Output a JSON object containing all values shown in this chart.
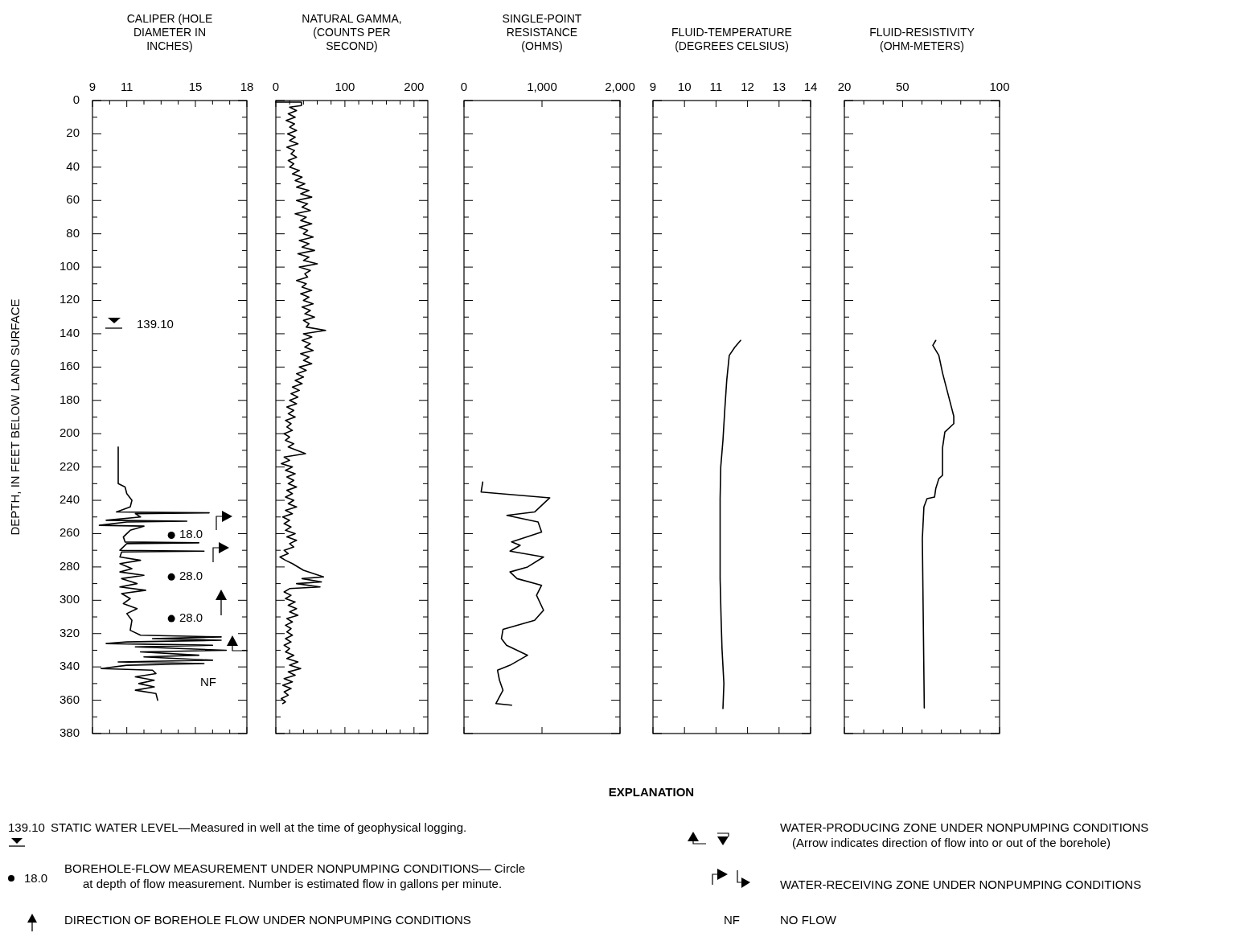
{
  "chart_data": [
    {
      "type": "line",
      "title": "CALIPER (HOLE DIAMETER IN INCHES)",
      "ylabel": "DEPTH, IN FEET BELOW LAND SURFACE",
      "xlim": [
        9,
        18
      ],
      "xticks": [
        9,
        {
          "value": 10,
          "label": null
        },
        11,
        {
          "value": 12,
          "label": null
        },
        {
          "value": 13,
          "label": null
        },
        {
          "value": 14,
          "label": null
        },
        15,
        {
          "value": 16,
          "label": null
        },
        {
          "value": 17,
          "label": null
        },
        18
      ],
      "ylim": [
        380,
        0
      ],
      "yticks": [
        0,
        {
          "value": 10,
          "label": null
        },
        20,
        {
          "value": 30,
          "label": null
        },
        40,
        {
          "value": 50,
          "label": null
        },
        60,
        {
          "value": 70,
          "label": null
        },
        80,
        {
          "value": 90,
          "label": null
        },
        100,
        {
          "value": 110,
          "label": null
        },
        120,
        {
          "value": 130,
          "label": null
        },
        140,
        {
          "value": 150,
          "label": null
        },
        160,
        {
          "value": 170,
          "label": null
        },
        180,
        {
          "value": 190,
          "label": null
        },
        200,
        {
          "value": 210,
          "label": null
        },
        220,
        {
          "value": 230,
          "label": null
        },
        240,
        {
          "value": 250,
          "label": null
        },
        260,
        {
          "value": 270,
          "label": null
        },
        280,
        {
          "value": 290,
          "label": null
        },
        300,
        {
          "value": 310,
          "label": null
        },
        320,
        {
          "value": 330,
          "label": null
        },
        340,
        {
          "value": 350,
          "label": null
        },
        360,
        {
          "value": 370,
          "label": null
        },
        380
      ],
      "series": [
        {
          "color": "#000000",
          "x": [
            10.5,
            10.5,
            10.5,
            10.9,
            11.0,
            11.3,
            11.2,
            10.4,
            15.8,
            11.5,
            11.8,
            9.8,
            14.5,
            11.0,
            9.4,
            12.0,
            11.2,
            10.8,
            10.9,
            15.2,
            11.0,
            10.6,
            15.5,
            10.7,
            10.6,
            11.8,
            10.6,
            11.3,
            10.6,
            12.0,
            10.7,
            11.6,
            10.6,
            12.1,
            10.7,
            11.2,
            10.8,
            11.6,
            11.0,
            11.3,
            11.2,
            11.8,
            16.5,
            12.5,
            16.5,
            11.0,
            9.8,
            16.0,
            11.5,
            16.8,
            11.8,
            15.2,
            12.0,
            16.0,
            10.5,
            15.5,
            11.0,
            9.5,
            12.5,
            12.7,
            11.5,
            12.6,
            11.7,
            12.6,
            11.5,
            12.7,
            12.8
          ],
          "values": [
            208,
            220,
            230,
            232,
            236,
            240,
            244,
            247,
            247.5,
            248,
            250,
            252,
            252.5,
            253,
            255,
            255.5,
            258,
            262,
            265,
            265.5,
            266,
            270,
            270.5,
            271,
            274,
            276,
            278,
            281,
            283,
            285,
            287,
            290,
            292,
            294,
            296,
            299,
            302,
            305,
            308,
            312,
            318,
            321,
            322,
            323,
            324,
            325,
            326,
            327,
            328,
            330,
            331,
            333,
            334,
            336,
            337,
            338,
            339,
            341,
            342,
            344,
            346,
            348,
            350,
            352,
            354,
            356,
            360
          ]
        },
        {
          "type": "scatter",
          "marker": "circle",
          "color": "#000000",
          "x": [
            13.6,
            13.6,
            13.6
          ],
          "values": [
            261,
            286,
            311
          ]
        }
      ],
      "annotations": [
        "139.10",
        "NF",
        "18.0",
        "28.0",
        "28.0"
      ]
    },
    {
      "type": "line",
      "title": "NATURAL GAMMA, (COUNTS PER SECOND)",
      "tick_labels": "x",
      "xlim": [
        0,
        220
      ],
      "xticks": [
        0,
        {
          "value": 20,
          "label": null
        },
        {
          "value": 40,
          "label": null
        },
        {
          "value": 60,
          "label": null
        },
        {
          "value": 80,
          "label": null
        },
        100,
        {
          "value": 120,
          "label": null
        },
        {
          "value": 140,
          "label": null
        },
        {
          "value": 160,
          "label": null
        },
        {
          "value": 180,
          "label": null
        },
        200
      ],
      "ylim": [
        380,
        0
      ],
      "yticks": [
        0,
        {
          "value": 10,
          "label": null
        },
        20,
        {
          "value": 30,
          "label": null
        },
        40,
        {
          "value": 50,
          "label": null
        },
        60,
        {
          "value": 70,
          "label": null
        },
        80,
        {
          "value": 90,
          "label": null
        },
        100,
        {
          "value": 110,
          "label": null
        },
        120,
        {
          "value": 130,
          "label": null
        },
        140,
        {
          "value": 150,
          "label": null
        },
        160,
        {
          "value": 170,
          "label": null
        },
        180,
        {
          "value": 190,
          "label": null
        },
        200,
        {
          "value": 210,
          "label": null
        },
        220,
        {
          "value": 230,
          "label": null
        },
        240,
        {
          "value": 250,
          "label": null
        },
        260,
        {
          "value": 270,
          "label": null
        },
        280,
        {
          "value": 290,
          "label": null
        },
        300,
        {
          "value": 310,
          "label": null
        },
        320,
        {
          "value": 330,
          "label": null
        },
        340,
        {
          "value": 350,
          "label": null
        },
        360,
        {
          "value": 370,
          "label": null
        },
        380
      ],
      "series": [
        {
          "color": "#000000",
          "x": [
            0,
            37,
            37,
            20,
            30,
            18,
            28,
            15,
            27,
            20,
            30,
            17,
            28,
            20,
            32,
            16,
            27,
            22,
            30,
            18,
            26,
            20,
            34,
            24,
            38,
            28,
            42,
            30,
            48,
            36,
            52,
            30,
            46,
            38,
            50,
            28,
            44,
            36,
            52,
            34,
            46,
            40,
            54,
            34,
            48,
            38,
            56,
            32,
            48,
            40,
            60,
            34,
            50,
            42,
            46,
            30,
            44,
            38,
            52,
            36,
            48,
            40,
            54,
            38,
            50,
            42,
            56,
            40,
            48,
            44,
            72,
            40,
            52,
            38,
            50,
            42,
            54,
            36,
            48,
            40,
            52,
            34,
            44,
            30,
            40,
            28,
            38,
            24,
            34,
            22,
            32,
            20,
            30,
            16,
            26,
            18,
            28,
            14,
            22,
            16,
            24,
            12,
            20,
            14,
            26,
            18,
            43,
            12,
            20,
            8,
            24,
            14,
            28,
            16,
            26,
            18,
            30,
            16,
            24,
            14,
            26,
            18,
            30,
            14,
            24,
            10,
            20,
            12,
            22,
            14,
            28,
            16,
            30,
            20,
            26,
            12,
            18,
            6,
            14,
            24,
            40,
            69,
            38,
            66,
            30,
            64,
            20,
            12,
            22,
            14,
            28,
            18,
            30,
            20,
            32,
            16,
            24,
            14,
            22,
            16,
            24,
            14,
            22,
            12,
            20,
            14,
            26,
            16,
            32,
            20,
            36,
            18,
            28,
            12,
            24,
            10,
            22,
            12,
            18,
            8,
            14,
            10
          ],
          "values": [
            1,
            1,
            3,
            4,
            6,
            8,
            10,
            12,
            14,
            16,
            18,
            20,
            22,
            24,
            26,
            28,
            30,
            32,
            34,
            36,
            38,
            40,
            42,
            44,
            46,
            48,
            50,
            52,
            54,
            56,
            58,
            60,
            62,
            64,
            66,
            68,
            70,
            72,
            74,
            76,
            78,
            80,
            82,
            84,
            86,
            88,
            90,
            92,
            94,
            96,
            98,
            100,
            102,
            104,
            106,
            108,
            110,
            112,
            114,
            116,
            118,
            120,
            122,
            124,
            126,
            128,
            130,
            132,
            134,
            136,
            138,
            140,
            142,
            144,
            146,
            148,
            150,
            152,
            154,
            156,
            158,
            160,
            162,
            164,
            166,
            168,
            170,
            172,
            174,
            176,
            178,
            180,
            182,
            184,
            186,
            188,
            190,
            192,
            194,
            196,
            198,
            200,
            202,
            204,
            206,
            208,
            212,
            214,
            216,
            218,
            220,
            222,
            224,
            226,
            228,
            230,
            232,
            234,
            236,
            238,
            240,
            242,
            244,
            246,
            248,
            250,
            252,
            254,
            256,
            258,
            260,
            262,
            264,
            266,
            268,
            270,
            272,
            274,
            276,
            278,
            282,
            286,
            287,
            289,
            290,
            292,
            293,
            295,
            297,
            299,
            301,
            303,
            305,
            307,
            309,
            311,
            313,
            315,
            317,
            319,
            321,
            323,
            325,
            327,
            329,
            331,
            333,
            335,
            337,
            339,
            341,
            343,
            345,
            347,
            349,
            351,
            353,
            355,
            357,
            359,
            361,
            362
          ]
        }
      ]
    },
    {
      "type": "line",
      "title": "SINGLE-POINT RESISTANCE (OHMS)",
      "tick_labels": "x",
      "xlim": [
        0,
        2000
      ],
      "xticks": [
        0,
        {
          "value": 1000,
          "label": "1,000"
        },
        {
          "value": 2000,
          "label": "2,000"
        }
      ],
      "ylim": [
        380,
        0
      ],
      "yticks": [
        0,
        {
          "value": 10,
          "label": null
        },
        20,
        {
          "value": 30,
          "label": null
        },
        40,
        {
          "value": 50,
          "label": null
        },
        60,
        {
          "value": 70,
          "label": null
        },
        80,
        {
          "value": 90,
          "label": null
        },
        100,
        {
          "value": 110,
          "label": null
        },
        120,
        {
          "value": 130,
          "label": null
        },
        140,
        {
          "value": 150,
          "label": null
        },
        160,
        {
          "value": 170,
          "label": null
        },
        180,
        {
          "value": 190,
          "label": null
        },
        200,
        {
          "value": 210,
          "label": null
        },
        220,
        {
          "value": 230,
          "label": null
        },
        240,
        {
          "value": 250,
          "label": null
        },
        260,
        {
          "value": 270,
          "label": null
        },
        280,
        {
          "value": 290,
          "label": null
        },
        300,
        {
          "value": 310,
          "label": null
        },
        320,
        {
          "value": 330,
          "label": null
        },
        340,
        {
          "value": 350,
          "label": null
        },
        360,
        {
          "value": 370,
          "label": null
        },
        380
      ],
      "series": [
        {
          "color": "#000000",
          "x": [
            240,
            220,
            1100,
            905,
            550,
            950,
            995,
            610,
            720,
            590,
            1020,
            815,
            590,
            680,
            995,
            930,
            1020,
            905,
            500,
            480,
            545,
            815,
            590,
            430,
            455,
            500,
            410,
            610
          ],
          "values": [
            229,
            235,
            238.5,
            247,
            249,
            253,
            259,
            265,
            267,
            270.5,
            274,
            280,
            283,
            287,
            291,
            297,
            306,
            312,
            317.5,
            323,
            327,
            333,
            339,
            342,
            348,
            354,
            362,
            363
          ]
        }
      ]
    },
    {
      "type": "line",
      "title": "FLUID-TEMPERATURE (DEGREES CELSIUS)",
      "tick_labels": "x",
      "xlim": [
        9,
        14
      ],
      "xticks": [
        9,
        10,
        11,
        12,
        13,
        14
      ],
      "ylim": [
        380,
        0
      ],
      "yticks": [
        0,
        {
          "value": 10,
          "label": null
        },
        20,
        {
          "value": 30,
          "label": null
        },
        40,
        {
          "value": 50,
          "label": null
        },
        60,
        {
          "value": 70,
          "label": null
        },
        80,
        {
          "value": 90,
          "label": null
        },
        100,
        {
          "value": 110,
          "label": null
        },
        120,
        {
          "value": 130,
          "label": null
        },
        140,
        {
          "value": 150,
          "label": null
        },
        160,
        {
          "value": 170,
          "label": null
        },
        180,
        {
          "value": 190,
          "label": null
        },
        200,
        {
          "value": 210,
          "label": null
        },
        220,
        {
          "value": 230,
          "label": null
        },
        240,
        {
          "value": 250,
          "label": null
        },
        260,
        {
          "value": 270,
          "label": null
        },
        280,
        {
          "value": 290,
          "label": null
        },
        300,
        {
          "value": 310,
          "label": null
        },
        320,
        {
          "value": 330,
          "label": null
        },
        340,
        {
          "value": 350,
          "label": null
        },
        360,
        {
          "value": 370,
          "label": null
        },
        380
      ],
      "series": [
        {
          "color": "#000000",
          "x": [
            11.78,
            11.6,
            11.42,
            11.34,
            11.28,
            11.22,
            11.15,
            11.13,
            11.13,
            11.16,
            11.19,
            11.25,
            11.22
          ],
          "values": [
            144,
            148,
            153,
            168,
            185,
            204,
            220,
            239,
            287,
            310,
            329,
            350,
            365
          ]
        }
      ]
    },
    {
      "type": "line",
      "title": "FLUID-RESISTIVITY (OHM-METERS)",
      "tick_labels": "x",
      "xlim": [
        20,
        100
      ],
      "xticks": [
        20,
        {
          "value": 30,
          "label": null
        },
        {
          "value": 40,
          "label": null
        },
        50,
        {
          "value": 60,
          "label": null
        },
        {
          "value": 70,
          "label": null
        },
        {
          "value": 80,
          "label": null
        },
        {
          "value": 90,
          "label": null
        },
        100
      ],
      "ylim": [
        380,
        0
      ],
      "yticks": [
        0,
        {
          "value": 10,
          "label": null
        },
        20,
        {
          "value": 30,
          "label": null
        },
        40,
        {
          "value": 50,
          "label": null
        },
        60,
        {
          "value": 70,
          "label": null
        },
        80,
        {
          "value": 90,
          "label": null
        },
        100,
        {
          "value": 110,
          "label": null
        },
        120,
        {
          "value": 130,
          "label": null
        },
        140,
        {
          "value": 150,
          "label": null
        },
        160,
        {
          "value": 170,
          "label": null
        },
        180,
        {
          "value": 190,
          "label": null
        },
        200,
        {
          "value": 210,
          "label": null
        },
        220,
        {
          "value": 230,
          "label": null
        },
        240,
        {
          "value": 250,
          "label": null
        },
        260,
        {
          "value": 270,
          "label": null
        },
        280,
        {
          "value": 290,
          "label": null
        },
        300,
        {
          "value": 310,
          "label": null
        },
        320,
        {
          "value": 330,
          "label": null
        },
        340,
        {
          "value": 350,
          "label": null
        },
        360,
        {
          "value": 370,
          "label": null
        },
        380
      ],
      "series": [
        {
          "color": "#000000",
          "x": [
            67.1,
            65.6,
            68.7,
            70.6,
            76.4,
            76.4,
            71.8,
            70.6,
            70.6,
            68.7,
            67.1,
            66.5,
            62.6,
            61,
            60.2,
            61.2
          ],
          "values": [
            144,
            147,
            153,
            163.5,
            189.5,
            194,
            199,
            208.5,
            225,
            227,
            233,
            238,
            239,
            244,
            263,
            364.7
          ]
        }
      ]
    },
    {
      "type": "other",
      "title": "EXPLANATION",
      "annotations": [
        "139.10",
        "STATIC WATER LEVEL—Measured in well at the time of geophysical logging.",
        "18.0",
        "BOREHOLE-FLOW MEASUREMENT UNDER NONPUMPING CONDITIONS— Circle",
        "at depth of flow measurement. Number is estimated flow in gallons per minute.",
        "DIRECTION OF BOREHOLE FLOW UNDER NONPUMPING CONDITIONS",
        "WATER-PRODUCING ZONE UNDER NONPUMPING CONDITIONS",
        "(Arrow indicates direction of flow into or out of the borehole)",
        "WATER-RECEIVING ZONE UNDER NONPUMPING CONDITIONS",
        "NF",
        "NO FLOW"
      ]
    }
  ]
}
